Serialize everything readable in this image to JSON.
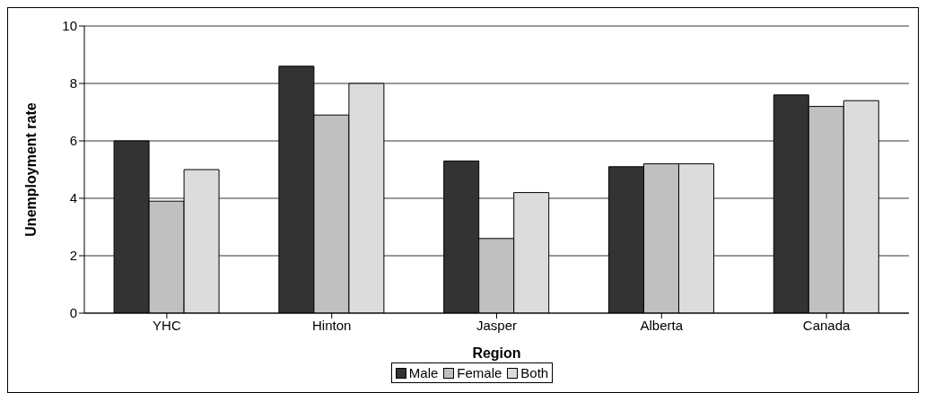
{
  "chart_data": {
    "type": "bar",
    "xlabel": "Region",
    "ylabel": "Unemployment rate",
    "categories": [
      "YHC",
      "Hinton",
      "Jasper",
      "Alberta",
      "Canada"
    ],
    "series": [
      {
        "name": "Male",
        "color": "#333333",
        "values": [
          6.0,
          8.6,
          5.3,
          5.1,
          7.6
        ]
      },
      {
        "name": "Female",
        "color": "#c0c0c0",
        "values": [
          3.9,
          6.9,
          2.6,
          5.2,
          7.2
        ]
      },
      {
        "name": "Both",
        "color": "#dcdcdc",
        "values": [
          5.0,
          8.0,
          4.2,
          5.2,
          7.4
        ]
      }
    ],
    "ylim": [
      0,
      10
    ],
    "yticks": [
      0,
      2,
      4,
      6,
      8,
      10
    ],
    "grid": "y",
    "legend": "bottom"
  }
}
